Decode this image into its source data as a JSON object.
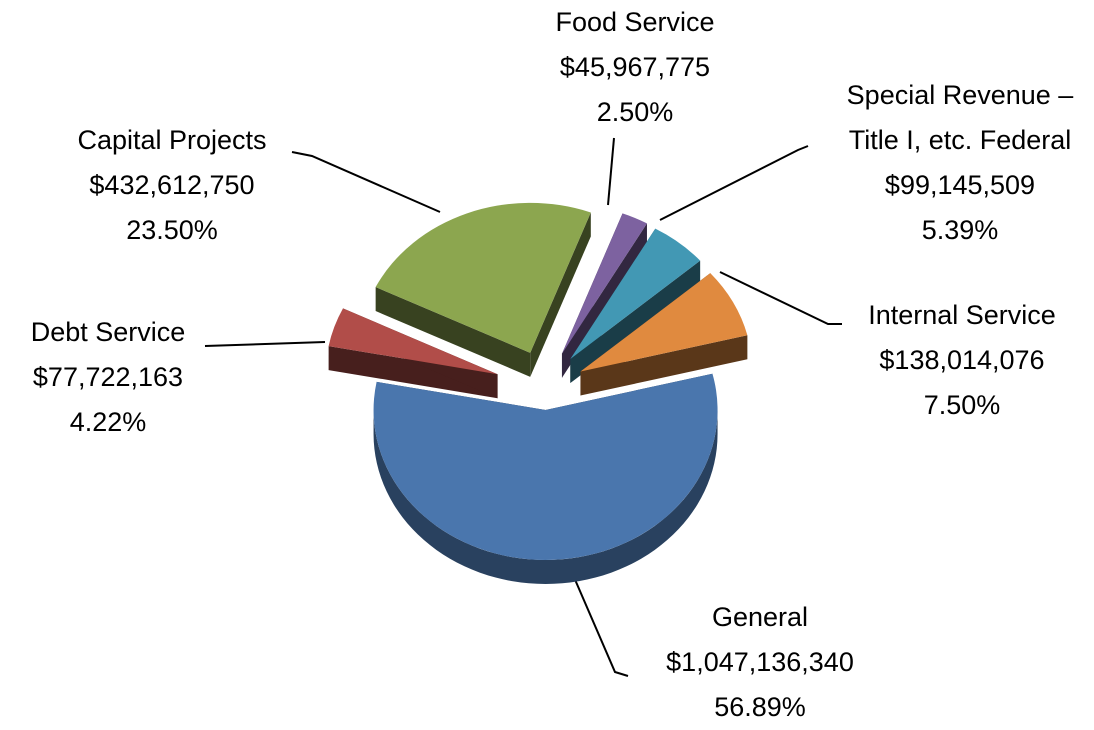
{
  "chart_data": {
    "type": "pie3d",
    "categories": [
      "General",
      "Debt Service",
      "Capital Projects",
      "Food Service",
      "Special Revenue –\nTitle I, etc. Federal",
      "Internal Service"
    ],
    "values": [
      1047136340,
      77722163,
      432612750,
      45967775,
      99145509,
      138014076
    ],
    "value_labels": [
      "$1,047,136,340",
      "$77,722,163",
      "$432,612,750",
      "$45,967,775",
      "$99,145,509",
      "$138,014,076"
    ],
    "percents": [
      56.89,
      4.22,
      23.5,
      2.5,
      5.39,
      7.5
    ],
    "percent_labels": [
      "56.89%",
      "4.22%",
      "23.50%",
      "2.50%",
      "5.39%",
      "7.50%"
    ],
    "colors": [
      "#4a76ad",
      "#b14d49",
      "#8ca64f",
      "#7d62a0",
      "#4298b4",
      "#e08a3f"
    ]
  }
}
